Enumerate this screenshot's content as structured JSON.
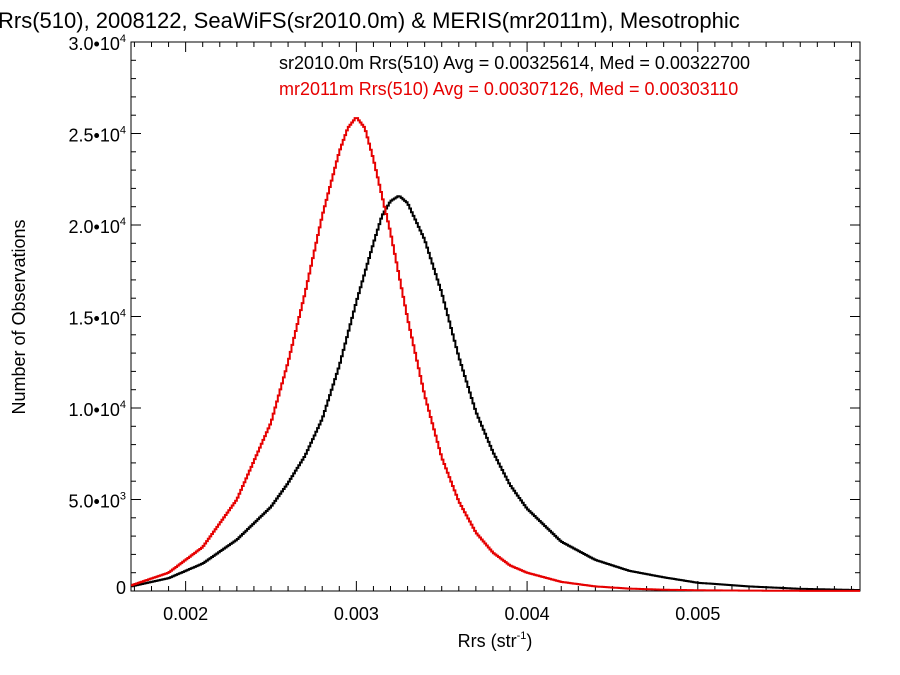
{
  "chart_data": {
    "type": "line",
    "title": "Rrs(510), 2008122, SeaWiFS(sr2010.0m) & MERIS(mr2011m), Mesotrophic",
    "xlabel": "Rrs (str",
    "xlabel_sup": "-1",
    "xlabel_end": ")",
    "ylabel": "Number of Observations",
    "xlim": [
      0.00168,
      0.00595
    ],
    "ylim": [
      0,
      30000
    ],
    "x_ticks": [
      {
        "value": 0.002,
        "label": "0.002"
      },
      {
        "value": 0.003,
        "label": "0.003"
      },
      {
        "value": 0.004,
        "label": "0.004"
      },
      {
        "value": 0.005,
        "label": "0.005"
      }
    ],
    "y_ticks": [
      {
        "value": 0,
        "label": "0",
        "sup": ""
      },
      {
        "value": 5000,
        "label": "5.0•10",
        "sup": "3"
      },
      {
        "value": 10000,
        "label": "1.0•10",
        "sup": "4"
      },
      {
        "value": 15000,
        "label": "1.5•10",
        "sup": "4"
      },
      {
        "value": 20000,
        "label": "2.0•10",
        "sup": "4"
      },
      {
        "value": 25000,
        "label": "2.5•10",
        "sup": "4"
      },
      {
        "value": 30000,
        "label": "3.0•10",
        "sup": "4"
      }
    ],
    "series": [
      {
        "name": "sr2010.0m",
        "color": "#000000",
        "legend": "sr2010.0m Rrs(510) Avg = 0.00325614, Med = 0.00322700",
        "x": [
          0.00168,
          0.0019,
          0.0021,
          0.0023,
          0.0025,
          0.0026,
          0.0027,
          0.0028,
          0.0029,
          0.003,
          0.0031,
          0.00315,
          0.0032,
          0.00325,
          0.0033,
          0.0034,
          0.0035,
          0.0036,
          0.0037,
          0.0038,
          0.0039,
          0.004,
          0.0042,
          0.0044,
          0.0046,
          0.0048,
          0.005,
          0.0053,
          0.0056,
          0.00595
        ],
        "y": [
          250,
          700,
          1500,
          2800,
          4600,
          5900,
          7400,
          9400,
          12300,
          15800,
          19000,
          20500,
          21300,
          21600,
          21200,
          19200,
          16300,
          12800,
          9800,
          7600,
          5800,
          4500,
          2700,
          1700,
          1100,
          750,
          450,
          250,
          120,
          50
        ]
      },
      {
        "name": "mr2011m",
        "color": "#e60000",
        "legend": "mr2011m Rrs(510) Avg = 0.00307126, Med = 0.00303110",
        "x": [
          0.00168,
          0.0019,
          0.0021,
          0.0023,
          0.0025,
          0.0026,
          0.0027,
          0.0028,
          0.0029,
          0.00295,
          0.003,
          0.00305,
          0.0031,
          0.0032,
          0.0033,
          0.0034,
          0.0035,
          0.0036,
          0.0037,
          0.0038,
          0.0039,
          0.004,
          0.0042,
          0.0044,
          0.0046,
          0.0048,
          0.005,
          0.0053,
          0.0056,
          0.00595
        ],
        "y": [
          300,
          1000,
          2400,
          5000,
          9200,
          12500,
          16300,
          20500,
          24000,
          25300,
          25900,
          25300,
          23600,
          19600,
          14900,
          10700,
          7300,
          4900,
          3200,
          2100,
          1400,
          1000,
          500,
          250,
          130,
          70,
          40,
          20,
          10,
          5
        ]
      }
    ],
    "legend_position": "top-right",
    "grid": false
  }
}
